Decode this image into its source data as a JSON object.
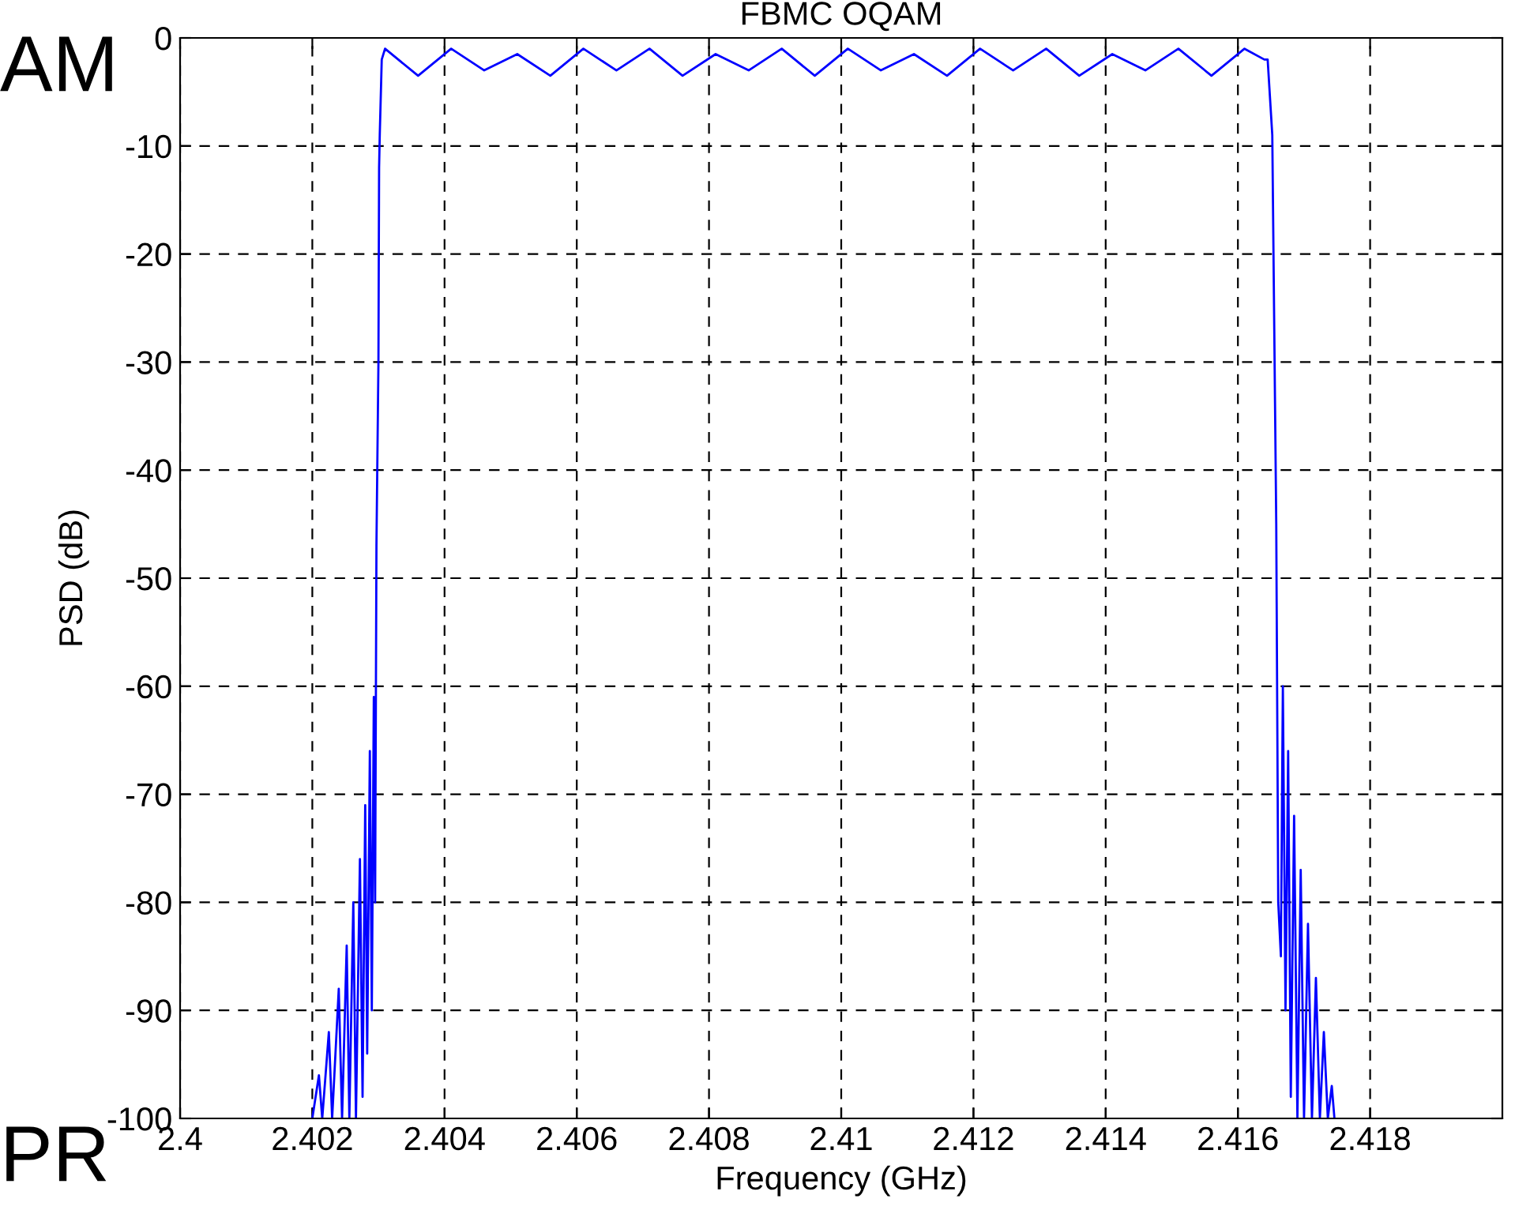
{
  "chart_data": {
    "type": "line",
    "title": "FBMC OQAM",
    "xlabel": "Frequency (GHz)",
    "ylabel": "PSD (dB)",
    "annotations": [
      "AM",
      "PR"
    ],
    "xlim": [
      2.4,
      2.42
    ],
    "xticks": [
      2.4,
      2.402,
      2.404,
      2.406,
      2.408,
      2.41,
      2.412,
      2.414,
      2.416,
      2.418
    ],
    "ylim": [
      -100,
      0
    ],
    "yticks": [
      -100,
      -90,
      -80,
      -70,
      -60,
      -50,
      -40,
      -30,
      -20,
      -10,
      0
    ],
    "grid": true,
    "legend": false,
    "marker": "none",
    "line_style": "solid",
    "series": [
      {
        "color": "#0000ff",
        "x": [
          2.402,
          2.4021,
          2.40215,
          2.40225,
          2.4023,
          2.4024,
          2.40245,
          2.40252,
          2.40256,
          2.40262,
          2.40266,
          2.40272,
          2.40276,
          2.4028,
          2.40283,
          2.40287,
          2.4029,
          2.40293,
          2.40295,
          2.40297,
          2.403,
          2.40301,
          2.40302,
          2.40305,
          2.4031,
          2.4036,
          2.4041,
          2.4046,
          2.4051,
          2.4056,
          2.4061,
          2.4066,
          2.4071,
          2.4076,
          2.4081,
          2.4086,
          2.4091,
          2.4096,
          2.4101,
          2.4106,
          2.4111,
          2.4116,
          2.4121,
          2.4126,
          2.4131,
          2.4136,
          2.4141,
          2.4146,
          2.4151,
          2.4156,
          2.4161,
          2.4164,
          2.41645,
          2.41652,
          2.41655,
          2.41658,
          2.41661,
          2.41665,
          2.41668,
          2.41672,
          2.41676,
          2.4168,
          2.41685,
          2.4169,
          2.41695,
          2.417,
          2.41706,
          2.41712,
          2.41718,
          2.41724,
          2.4173,
          2.41736,
          2.41742,
          2.41746
        ],
        "values": [
          -100,
          -96,
          -100,
          -92,
          -100,
          -88,
          -100,
          -84,
          -100,
          -80,
          -100,
          -76,
          -98,
          -71,
          -94,
          -66,
          -90,
          -61,
          -80,
          -47,
          -30,
          -12,
          -9,
          -2,
          -1,
          -3.5,
          -1,
          -3,
          -1.5,
          -3.5,
          -1,
          -3,
          -1,
          -3.5,
          -1.5,
          -3,
          -1,
          -3.5,
          -1,
          -3,
          -1.5,
          -3.5,
          -1,
          -3,
          -1,
          -3.5,
          -1.5,
          -3,
          -1,
          -3.5,
          -1,
          -2,
          -2,
          -9,
          -27,
          -45,
          -80,
          -85,
          -60,
          -90,
          -66,
          -98,
          -72,
          -100,
          -77,
          -100,
          -82,
          -100,
          -87,
          -100,
          -92,
          -100,
          -97,
          -100
        ]
      }
    ]
  }
}
